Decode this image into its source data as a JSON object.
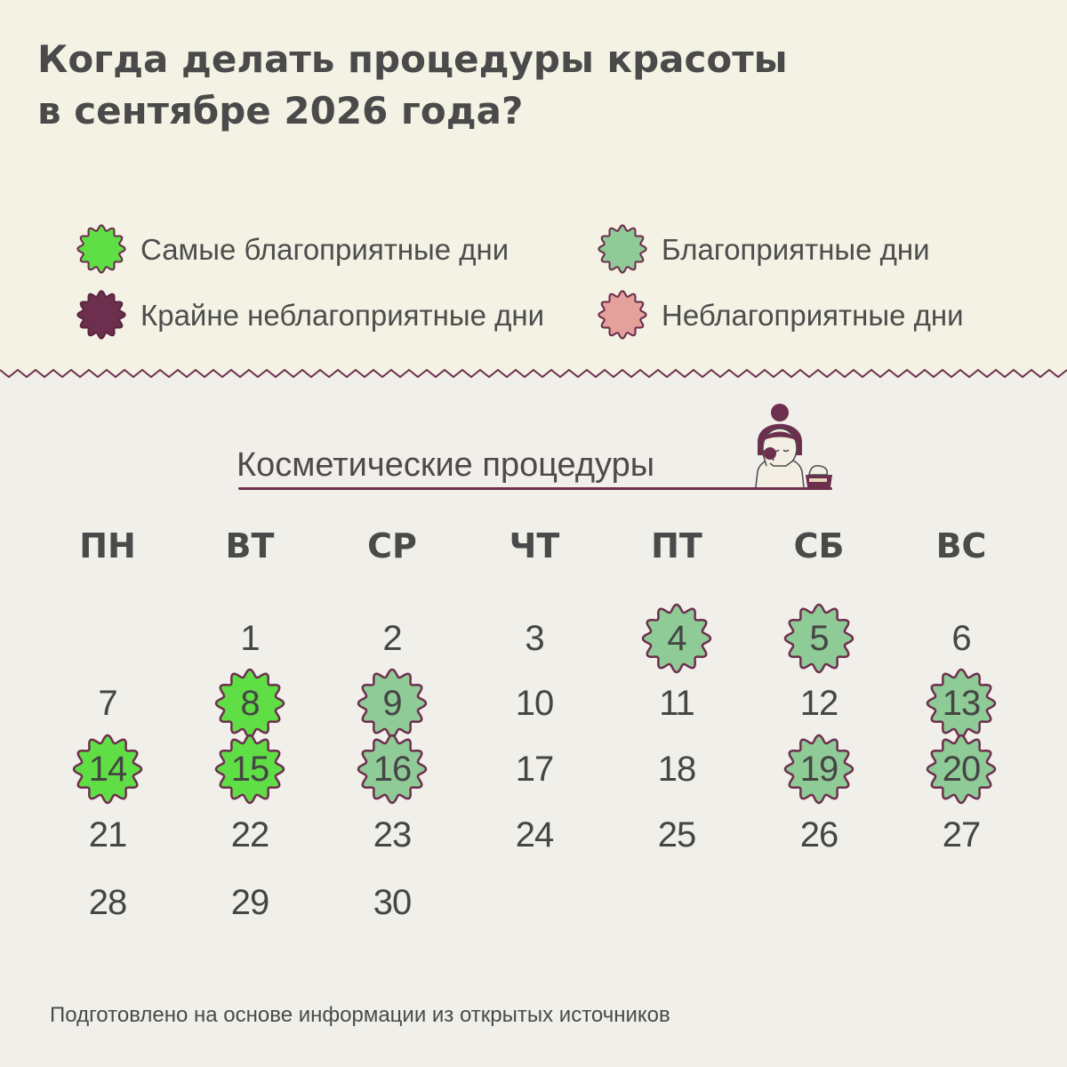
{
  "header": {
    "title_line1": "Когда делать процедуры красоты",
    "title_line2": "в сентябре 2026 года?"
  },
  "legend": {
    "best": {
      "label": "Самые благоприятные дни",
      "color": "#5fdf45"
    },
    "good": {
      "label": "Благоприятные дни",
      "color": "#8fcb96"
    },
    "worst": {
      "label": "Крайне неблагоприятные дни",
      "color": "#6d2f4e"
    },
    "bad": {
      "label": "Неблагоприятные дни",
      "color": "#e4a09a"
    }
  },
  "calendar": {
    "section_title": "Косметические процедуры",
    "icon": "woman-face-cream-icon",
    "weekdays": [
      "ПН",
      "ВТ",
      "СР",
      "ЧТ",
      "ПТ",
      "СБ",
      "ВС"
    ],
    "days": [
      {
        "d": "1",
        "s": ""
      },
      {
        "d": "2",
        "s": ""
      },
      {
        "d": "3",
        "s": ""
      },
      {
        "d": "4",
        "s": "good"
      },
      {
        "d": "5",
        "s": "good"
      },
      {
        "d": "6",
        "s": ""
      },
      {
        "d": "7",
        "s": ""
      },
      {
        "d": "8",
        "s": "best"
      },
      {
        "d": "9",
        "s": "good"
      },
      {
        "d": "10",
        "s": ""
      },
      {
        "d": "11",
        "s": ""
      },
      {
        "d": "12",
        "s": ""
      },
      {
        "d": "13",
        "s": "good"
      },
      {
        "d": "14",
        "s": "best"
      },
      {
        "d": "15",
        "s": "best"
      },
      {
        "d": "16",
        "s": "good"
      },
      {
        "d": "17",
        "s": ""
      },
      {
        "d": "18",
        "s": ""
      },
      {
        "d": "19",
        "s": "good"
      },
      {
        "d": "20",
        "s": "good"
      },
      {
        "d": "21",
        "s": ""
      },
      {
        "d": "22",
        "s": ""
      },
      {
        "d": "23",
        "s": ""
      },
      {
        "d": "24",
        "s": ""
      },
      {
        "d": "25",
        "s": ""
      },
      {
        "d": "26",
        "s": ""
      },
      {
        "d": "27",
        "s": ""
      },
      {
        "d": "28",
        "s": ""
      },
      {
        "d": "29",
        "s": ""
      },
      {
        "d": "30",
        "s": ""
      }
    ]
  },
  "footer": {
    "note": "Подготовлено на основе информации из открытых источников"
  },
  "colors": {
    "accent": "#6d2f4e",
    "top_background": "#f3f2e4",
    "bottom_background": "#f0efe9"
  }
}
